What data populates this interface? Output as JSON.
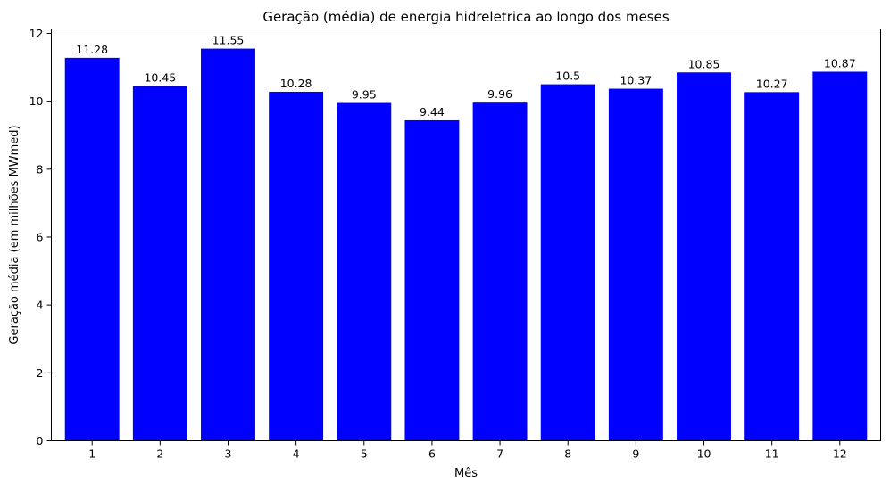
{
  "chart_data": {
    "type": "bar",
    "title": "Geração (média) de energia hidreletrica ao longo dos meses",
    "xlabel": "Mês",
    "ylabel": "Geração média (em milhões MWmed)",
    "categories": [
      "1",
      "2",
      "3",
      "4",
      "5",
      "6",
      "7",
      "8",
      "9",
      "10",
      "11",
      "12"
    ],
    "values": [
      11.28,
      10.45,
      11.55,
      10.28,
      9.95,
      9.44,
      9.96,
      10.5,
      10.37,
      10.85,
      10.27,
      10.87
    ],
    "data_labels": [
      "11.28",
      "10.45",
      "11.55",
      "10.28",
      "9.95",
      "9.44",
      "9.96",
      "10.5",
      "10.37",
      "10.85",
      "10.27",
      "10.87"
    ],
    "yticks": [
      0,
      2,
      4,
      6,
      8,
      10,
      12
    ],
    "ylim": [
      0,
      12.13
    ],
    "grid": false,
    "legend": "none",
    "colors": {
      "bar": "#0000ff",
      "axis": "#000000",
      "text": "#000000"
    }
  }
}
